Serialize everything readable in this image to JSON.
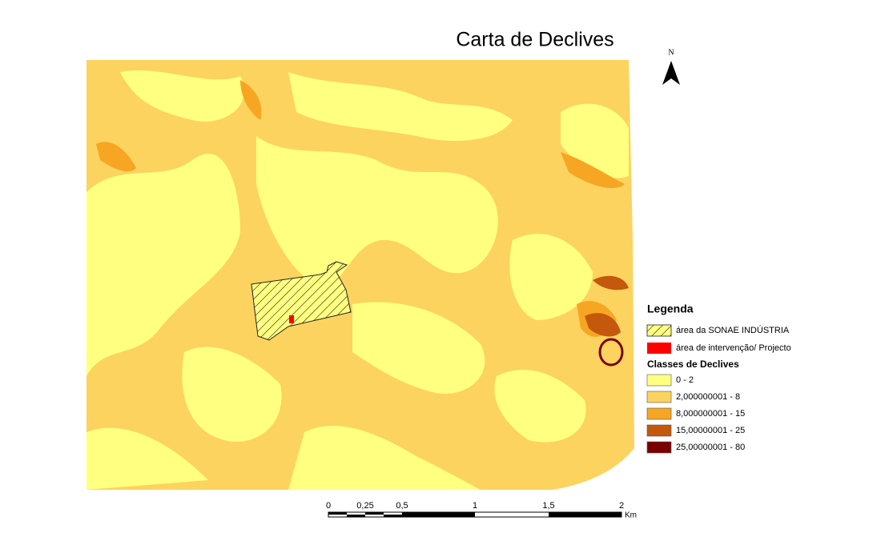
{
  "title": "Carta de Declives",
  "north_arrow": {
    "label": "N"
  },
  "legend": {
    "title": "Legenda",
    "layers": [
      {
        "label": "área da SONAE INDÚSTRIA"
      },
      {
        "label": "área de intervenção/ Projecto",
        "color": "#ff0000"
      }
    ],
    "classes_title": "Classes de Declives",
    "classes": [
      {
        "label": "0 - 2",
        "color": "#ffff80"
      },
      {
        "label": "2,000000001 - 8",
        "color": "#fcd35e"
      },
      {
        "label": "8,000000001 - 15",
        "color": "#f6a623"
      },
      {
        "label": "15,00000001 - 25",
        "color": "#c4580c"
      },
      {
        "label": "25,00000001 - 80",
        "color": "#7a0000"
      }
    ]
  },
  "scale_bar": {
    "labels": [
      "0",
      "0,25",
      "0,5",
      "1",
      "1,5",
      "2"
    ],
    "unit": "Km"
  }
}
